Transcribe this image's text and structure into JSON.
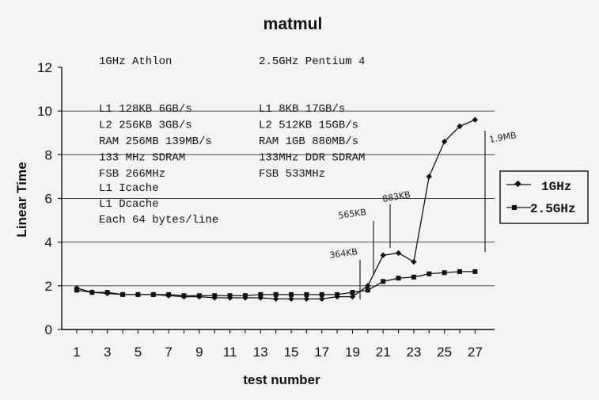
{
  "chart_data": {
    "type": "line",
    "title": "matmul",
    "xlabel": "test number",
    "ylabel": "Linear Time",
    "xlim": [
      0,
      28
    ],
    "ylim": [
      0,
      12
    ],
    "xticks": [
      1,
      3,
      5,
      7,
      9,
      11,
      13,
      15,
      17,
      19,
      21,
      23,
      25,
      27
    ],
    "yticks": [
      0,
      2,
      4,
      6,
      8,
      10,
      12
    ],
    "gridlines_y": [
      2,
      4,
      6,
      8,
      10
    ],
    "x": [
      1,
      2,
      3,
      4,
      5,
      6,
      7,
      8,
      9,
      10,
      11,
      12,
      13,
      14,
      15,
      16,
      17,
      18,
      19,
      20,
      21,
      22,
      23,
      24,
      25,
      26,
      27
    ],
    "series": [
      {
        "name": "1GHz",
        "marker": "diamond",
        "values": [
          1.9,
          1.7,
          1.65,
          1.6,
          1.6,
          1.6,
          1.55,
          1.5,
          1.5,
          1.45,
          1.45,
          1.45,
          1.45,
          1.4,
          1.4,
          1.4,
          1.4,
          1.5,
          1.5,
          2.0,
          3.4,
          3.5,
          3.1,
          7.0,
          8.6,
          9.3,
          9.6
        ]
      },
      {
        "name": "2.5GHz",
        "marker": "square",
        "values": [
          1.8,
          1.7,
          1.7,
          1.6,
          1.6,
          1.6,
          1.6,
          1.55,
          1.55,
          1.55,
          1.55,
          1.55,
          1.6,
          1.6,
          1.6,
          1.6,
          1.6,
          1.6,
          1.7,
          1.8,
          2.2,
          2.35,
          2.4,
          2.55,
          2.6,
          2.65,
          2.65
        ]
      }
    ],
    "legend": {
      "position": "right",
      "entries": [
        "1GHz",
        "2.5GHz"
      ]
    }
  },
  "specs": {
    "left_title": "1GHz Athlon",
    "right_title": "2.5GHz Pentium 4",
    "left_lines": [
      "L1  128KB 6GB/s",
      "L2  256KB 3GB/s",
      "RAM 256MB 139MB/s",
      "133 MHz SDRAM",
      "FSB 266MHz"
    ],
    "right_lines": [
      "L1   8KB 17GB/s",
      "L2 512KB 15GB/s",
      "RAM  1GB 880MB/s",
      "133MHz DDR SDRAM",
      "FSB 533MHz"
    ],
    "cache_lines": [
      "L1 Icache",
      "L1 Dcache",
      "Each 64 bytes/line"
    ]
  },
  "annotations": [
    {
      "text": "364KB",
      "x": 19
    },
    {
      "text": "565KB",
      "x": 20
    },
    {
      "text": "883KB",
      "x": 21
    },
    {
      "text": "1.9MB",
      "x": 27
    }
  ],
  "colors": {
    "paper": "#f4f4f2",
    "ink": "#111111",
    "grid": "#333333",
    "handwriting": "#222222"
  }
}
